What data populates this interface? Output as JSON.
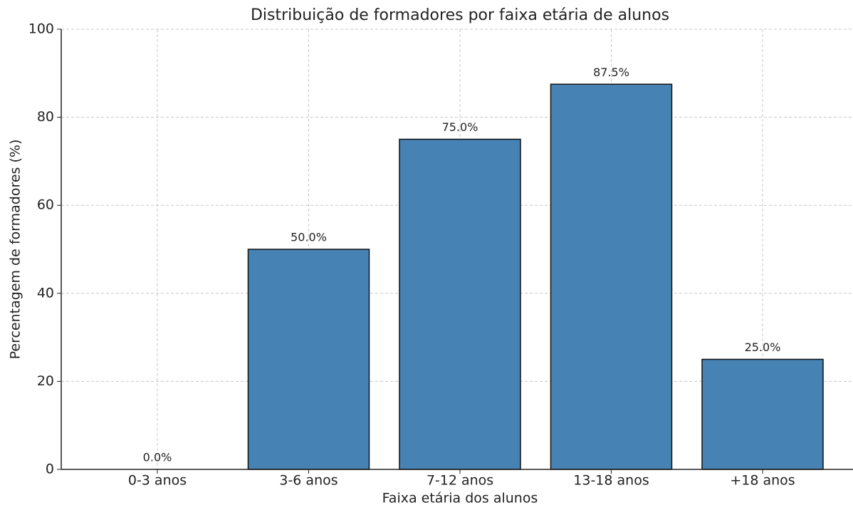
{
  "chart_data": {
    "type": "bar",
    "title": "Distribuição de formadores por faixa etária de alunos",
    "x_label": "Faixa etária dos alunos",
    "y_label": "Percentagem de formadores (%)",
    "categories": [
      "0-3 anos",
      "3-6 anos",
      "7-12 anos",
      "13-18 anos",
      "+18 anos"
    ],
    "values": [
      0,
      50,
      75,
      87.5,
      25
    ],
    "value_labels": [
      "0.0%",
      "50.0%",
      "75.0%",
      "87.5%",
      "25.0%"
    ],
    "color": "#4682b4",
    "ylim": [
      0,
      100
    ],
    "yticks": [
      0,
      20,
      40,
      60,
      80,
      100
    ],
    "grid": true
  }
}
